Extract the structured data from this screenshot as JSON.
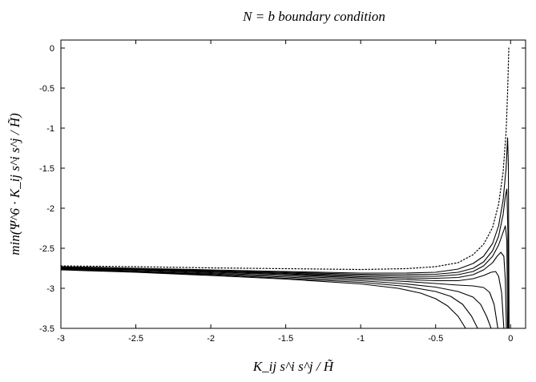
{
  "chart_data": {
    "type": "line",
    "title": "N = b boundary condition",
    "xlabel": "K_ij s^i s^j / H̃",
    "ylabel": "min(Ψ^6 · K_ij s^i s^j / H̃)",
    "xlim": [
      -3,
      0.1
    ],
    "ylim": [
      -3.5,
      0.1
    ],
    "x_ticks": [
      {
        "value": -3,
        "label": "-3"
      },
      {
        "value": -2.5,
        "label": "-2.5"
      },
      {
        "value": -2,
        "label": "-2"
      },
      {
        "value": -1.5,
        "label": "-1.5"
      },
      {
        "value": -1,
        "label": "-1"
      },
      {
        "value": -0.5,
        "label": "-0.5"
      },
      {
        "value": 0,
        "label": "0"
      }
    ],
    "y_ticks": [
      {
        "value": 0,
        "label": "0"
      },
      {
        "value": -0.5,
        "label": "-0.5"
      },
      {
        "value": -1,
        "label": "-1"
      },
      {
        "value": -1.5,
        "label": "-1.5"
      },
      {
        "value": -2,
        "label": "-2"
      },
      {
        "value": -2.5,
        "label": "-2.5"
      },
      {
        "value": -3,
        "label": "-3"
      },
      {
        "value": -3.5,
        "label": "-3.5"
      }
    ],
    "grid": false,
    "legend": "none",
    "series": [
      {
        "style": "dotted",
        "points": [
          [
            -3,
            -2.72
          ],
          [
            -2.5,
            -2.73
          ],
          [
            -2,
            -2.745
          ],
          [
            -1.5,
            -2.755
          ],
          [
            -1,
            -2.765
          ],
          [
            -0.7,
            -2.755
          ],
          [
            -0.5,
            -2.73
          ],
          [
            -0.35,
            -2.68
          ],
          [
            -0.25,
            -2.58
          ],
          [
            -0.18,
            -2.45
          ],
          [
            -0.12,
            -2.24
          ],
          [
            -0.08,
            -1.95
          ],
          [
            -0.05,
            -1.55
          ],
          [
            -0.03,
            -1.05
          ],
          [
            -0.02,
            -0.55
          ],
          [
            -0.012,
            0.0
          ]
        ]
      },
      {
        "style": "solid",
        "points": [
          [
            -3,
            -2.73
          ],
          [
            -2.5,
            -2.75
          ],
          [
            -2,
            -2.77
          ],
          [
            -1.5,
            -2.79
          ],
          [
            -1,
            -2.81
          ],
          [
            -0.7,
            -2.81
          ],
          [
            -0.5,
            -2.8
          ],
          [
            -0.35,
            -2.76
          ],
          [
            -0.25,
            -2.69
          ],
          [
            -0.18,
            -2.6
          ],
          [
            -0.12,
            -2.44
          ],
          [
            -0.08,
            -2.22
          ],
          [
            -0.05,
            -1.9
          ],
          [
            -0.03,
            -1.5
          ],
          [
            -0.02,
            -1.12
          ],
          [
            -0.015,
            -1.45
          ],
          [
            -0.01,
            -3.5
          ]
        ]
      },
      {
        "style": "solid",
        "points": [
          [
            -3,
            -2.735
          ],
          [
            -2.5,
            -2.755
          ],
          [
            -2,
            -2.78
          ],
          [
            -1.5,
            -2.8
          ],
          [
            -1,
            -2.825
          ],
          [
            -0.7,
            -2.83
          ],
          [
            -0.5,
            -2.825
          ],
          [
            -0.35,
            -2.8
          ],
          [
            -0.25,
            -2.75
          ],
          [
            -0.18,
            -2.67
          ],
          [
            -0.12,
            -2.53
          ],
          [
            -0.08,
            -2.35
          ],
          [
            -0.05,
            -2.08
          ],
          [
            -0.035,
            -1.85
          ],
          [
            -0.025,
            -1.76
          ],
          [
            -0.018,
            -2.3
          ],
          [
            -0.014,
            -3.5
          ]
        ]
      },
      {
        "style": "solid",
        "points": [
          [
            -3,
            -2.74
          ],
          [
            -2.5,
            -2.76
          ],
          [
            -2,
            -2.785
          ],
          [
            -1.5,
            -2.81
          ],
          [
            -1,
            -2.84
          ],
          [
            -0.7,
            -2.85
          ],
          [
            -0.5,
            -2.85
          ],
          [
            -0.35,
            -2.83
          ],
          [
            -0.25,
            -2.79
          ],
          [
            -0.18,
            -2.72
          ],
          [
            -0.12,
            -2.6
          ],
          [
            -0.08,
            -2.46
          ],
          [
            -0.05,
            -2.3
          ],
          [
            -0.035,
            -2.22
          ],
          [
            -0.025,
            -2.4
          ],
          [
            -0.02,
            -3.5
          ]
        ]
      },
      {
        "style": "solid",
        "points": [
          [
            -3,
            -2.745
          ],
          [
            -2.5,
            -2.765
          ],
          [
            -2,
            -2.79
          ],
          [
            -1.5,
            -2.82
          ],
          [
            -1,
            -2.855
          ],
          [
            -0.7,
            -2.87
          ],
          [
            -0.5,
            -2.875
          ],
          [
            -0.35,
            -2.865
          ],
          [
            -0.25,
            -2.83
          ],
          [
            -0.18,
            -2.77
          ],
          [
            -0.12,
            -2.68
          ],
          [
            -0.09,
            -2.6
          ],
          [
            -0.065,
            -2.55
          ],
          [
            -0.045,
            -2.6
          ],
          [
            -0.035,
            -2.9
          ],
          [
            -0.028,
            -3.5
          ]
        ]
      },
      {
        "style": "solid",
        "points": [
          [
            -3,
            -2.75
          ],
          [
            -2.5,
            -2.77
          ],
          [
            -2,
            -2.8
          ],
          [
            -1.5,
            -2.83
          ],
          [
            -1,
            -2.87
          ],
          [
            -0.7,
            -2.89
          ],
          [
            -0.5,
            -2.905
          ],
          [
            -0.35,
            -2.905
          ],
          [
            -0.25,
            -2.88
          ],
          [
            -0.18,
            -2.84
          ],
          [
            -0.13,
            -2.8
          ],
          [
            -0.1,
            -2.79
          ],
          [
            -0.08,
            -2.85
          ],
          [
            -0.06,
            -3.05
          ],
          [
            -0.045,
            -3.5
          ]
        ]
      },
      {
        "style": "solid",
        "points": [
          [
            -3,
            -2.755
          ],
          [
            -2.5,
            -2.78
          ],
          [
            -2,
            -2.81
          ],
          [
            -1.5,
            -2.845
          ],
          [
            -1,
            -2.885
          ],
          [
            -0.7,
            -2.915
          ],
          [
            -0.5,
            -2.94
          ],
          [
            -0.35,
            -2.96
          ],
          [
            -0.25,
            -2.97
          ],
          [
            -0.18,
            -2.99
          ],
          [
            -0.14,
            -3.05
          ],
          [
            -0.11,
            -3.2
          ],
          [
            -0.085,
            -3.5
          ]
        ]
      },
      {
        "style": "solid",
        "points": [
          [
            -3,
            -2.76
          ],
          [
            -2.5,
            -2.79
          ],
          [
            -2,
            -2.82
          ],
          [
            -1.5,
            -2.86
          ],
          [
            -1,
            -2.905
          ],
          [
            -0.7,
            -2.945
          ],
          [
            -0.5,
            -2.985
          ],
          [
            -0.35,
            -3.04
          ],
          [
            -0.25,
            -3.11
          ],
          [
            -0.2,
            -3.2
          ],
          [
            -0.16,
            -3.35
          ],
          [
            -0.13,
            -3.5
          ]
        ]
      },
      {
        "style": "solid",
        "points": [
          [
            -3,
            -2.765
          ],
          [
            -2.5,
            -2.795
          ],
          [
            -2,
            -2.83
          ],
          [
            -1.5,
            -2.875
          ],
          [
            -1,
            -2.925
          ],
          [
            -0.7,
            -2.975
          ],
          [
            -0.5,
            -3.04
          ],
          [
            -0.4,
            -3.1
          ],
          [
            -0.32,
            -3.2
          ],
          [
            -0.26,
            -3.35
          ],
          [
            -0.22,
            -3.5
          ]
        ]
      },
      {
        "style": "solid",
        "points": [
          [
            -3,
            -2.77
          ],
          [
            -2.5,
            -2.8
          ],
          [
            -2,
            -2.84
          ],
          [
            -1.5,
            -2.885
          ],
          [
            -1,
            -2.945
          ],
          [
            -0.75,
            -3.0
          ],
          [
            -0.6,
            -3.06
          ],
          [
            -0.5,
            -3.13
          ],
          [
            -0.42,
            -3.22
          ],
          [
            -0.35,
            -3.35
          ],
          [
            -0.3,
            -3.5
          ]
        ]
      }
    ]
  }
}
